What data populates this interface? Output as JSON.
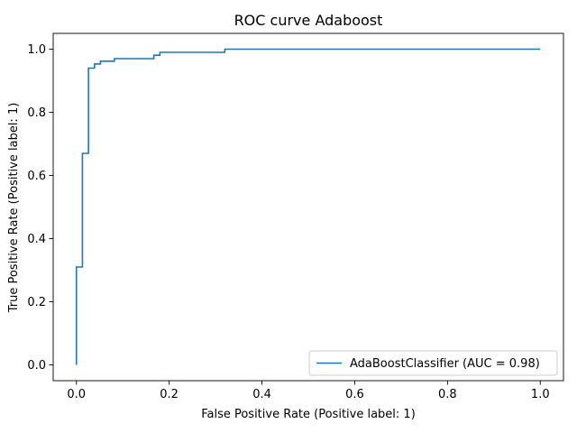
{
  "chart_data": {
    "type": "line",
    "title": "ROC curve Adaboost",
    "xlabel": "False Positive Rate (Positive label: 1)",
    "ylabel": "True Positive Rate (Positive label: 1)",
    "xlim": [
      -0.05,
      1.05
    ],
    "ylim": [
      -0.05,
      1.05
    ],
    "xticks": [
      0.0,
      0.2,
      0.4,
      0.6,
      0.8,
      1.0
    ],
    "yticks": [
      0.0,
      0.2,
      0.4,
      0.6,
      0.8,
      1.0
    ],
    "xtick_labels": [
      "0.0",
      "0.2",
      "0.4",
      "0.6",
      "0.8",
      "1.0"
    ],
    "ytick_labels": [
      "0.0",
      "0.2",
      "0.4",
      "0.6",
      "0.8",
      "1.0"
    ],
    "grid": false,
    "legend_position": "lower right",
    "series": [
      {
        "name": "AdaBoostClassifier (AUC = 0.98)",
        "color": "#1f77b4",
        "x": [
          0.0,
          0.0,
          0.013,
          0.013,
          0.026,
          0.026,
          0.039,
          0.039,
          0.052,
          0.052,
          0.082,
          0.082,
          0.167,
          0.167,
          0.18,
          0.18,
          0.32,
          0.32,
          1.0
        ],
        "y": [
          0.0,
          0.31,
          0.31,
          0.67,
          0.67,
          0.94,
          0.94,
          0.953,
          0.953,
          0.962,
          0.962,
          0.97,
          0.97,
          0.981,
          0.981,
          0.99,
          0.99,
          1.0,
          1.0
        ]
      }
    ]
  }
}
